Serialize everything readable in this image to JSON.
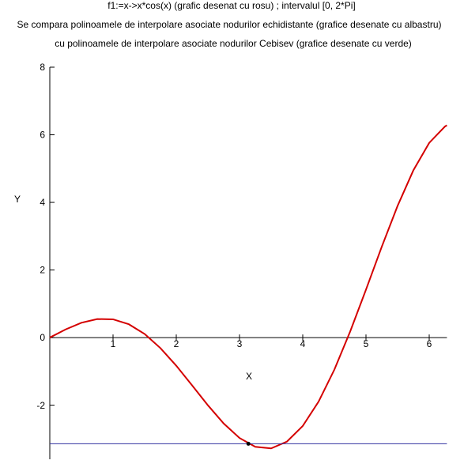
{
  "chart_data": {
    "type": "line",
    "title": "f1:=x->x*cos(x) (grafic desenat cu rosu) ; intervalul [0, 2*Pi]",
    "subtitle": [
      "Se compara polinoamele de interpolare asociate nodurilor echidistante (grafice desenate cu albastru)",
      "cu polinoamele de interpolare asociate nodurilor Cebisev (grafice desenate cu verde)"
    ],
    "x_label": "X",
    "y_label": "Y",
    "xlim": [
      0,
      6.28
    ],
    "ylim": [
      -3.6,
      8
    ],
    "xticks": [
      1,
      2,
      3,
      4,
      5,
      6
    ],
    "yticks": [
      -2,
      0,
      2,
      4,
      6,
      8
    ],
    "series": [
      {
        "color": "#d40000",
        "x": [
          0,
          0.25,
          0.5,
          0.75,
          1,
          1.25,
          1.5,
          1.75,
          2,
          2.25,
          2.5,
          2.75,
          3,
          3.25,
          3.5,
          3.75,
          4,
          4.25,
          4.5,
          4.75,
          5,
          5.25,
          5.5,
          5.75,
          6,
          6.25,
          6.28
        ],
        "values": [
          0,
          0.242,
          0.439,
          0.549,
          0.54,
          0.394,
          0.106,
          -0.312,
          -0.832,
          -1.413,
          -2.003,
          -2.542,
          -2.97,
          -3.231,
          -3.278,
          -3.077,
          -2.615,
          -1.896,
          -0.949,
          0.179,
          1.418,
          2.689,
          3.898,
          4.952,
          5.761,
          6.247,
          6.28
        ]
      },
      {
        "color": "#3030a0",
        "x": [
          0,
          6.28
        ],
        "values": [
          -3.14,
          -3.14
        ]
      }
    ],
    "points": {
      "color": "#000000",
      "x": [
        3.14
      ],
      "values": [
        -3.14
      ]
    }
  }
}
